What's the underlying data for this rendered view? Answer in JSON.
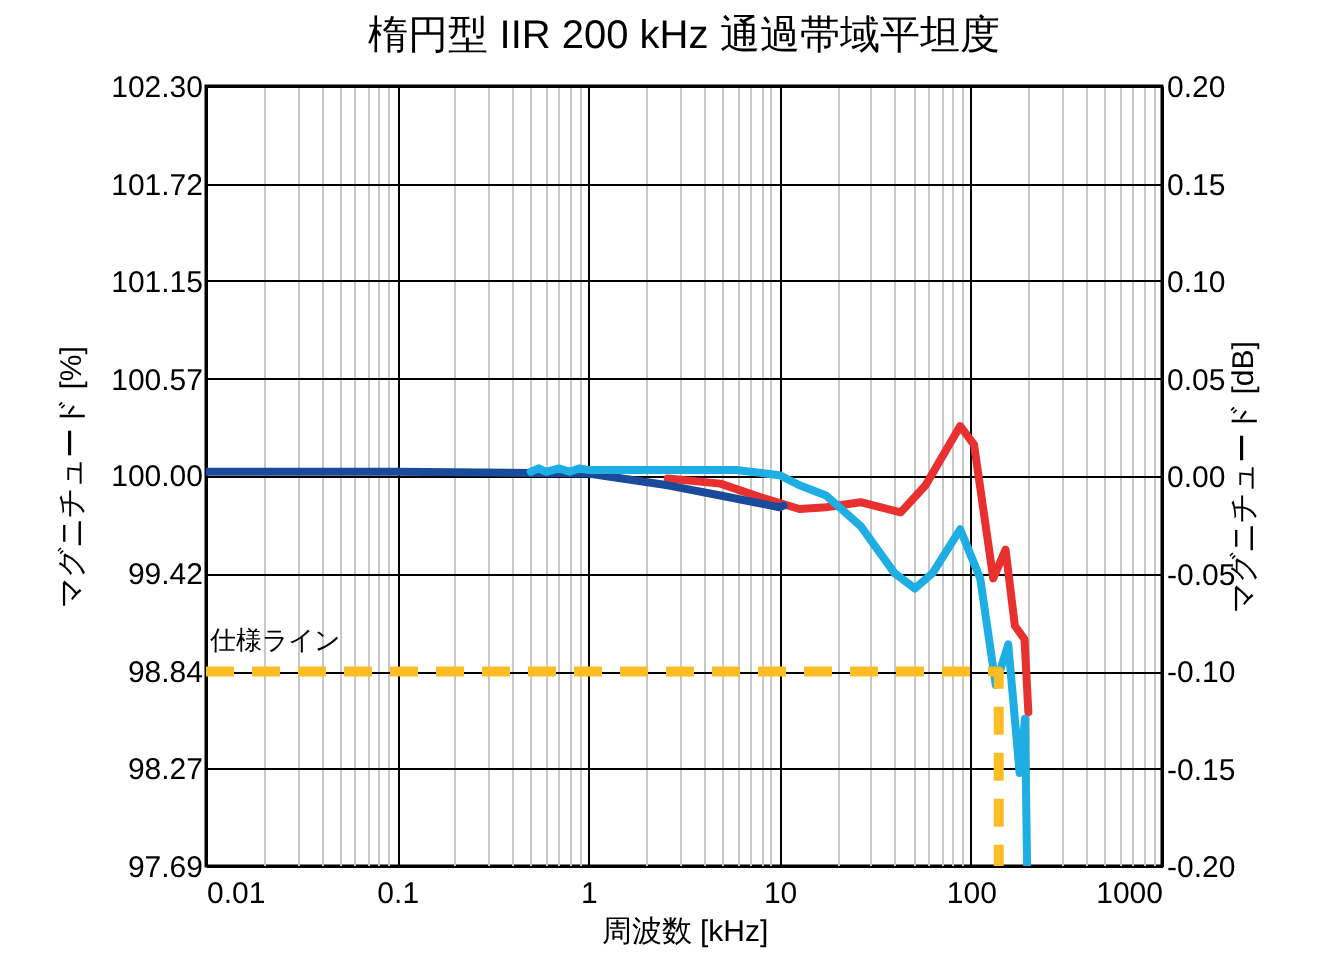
{
  "chart_data": {
    "type": "line",
    "title": "楕円型 IIR 200 kHz 通過帯域平坦度",
    "xlabel": "周波数 [kHz]",
    "ylabel": "マグニチュード [%]",
    "y2label": "マグニチュード [dB]",
    "log": "x",
    "grid": true,
    "xlim": [
      0.01,
      1000
    ],
    "xticks": [
      0.01,
      {
        "value": 0.02,
        "label": null
      },
      {
        "value": 0.03,
        "label": null
      },
      {
        "value": 0.04,
        "label": null
      },
      {
        "value": 0.05,
        "label": null
      },
      {
        "value": 0.06,
        "label": null
      },
      {
        "value": 0.07,
        "label": null
      },
      {
        "value": 0.08,
        "label": null
      },
      {
        "value": 0.09,
        "label": null
      },
      0.1,
      {
        "value": 0.2,
        "label": null
      },
      {
        "value": 0.3,
        "label": null
      },
      {
        "value": 0.4,
        "label": null
      },
      {
        "value": 0.5,
        "label": null
      },
      {
        "value": 0.6,
        "label": null
      },
      {
        "value": 0.7,
        "label": null
      },
      {
        "value": 0.8,
        "label": null
      },
      {
        "value": 0.9,
        "label": null
      },
      1,
      {
        "value": 2,
        "label": null
      },
      {
        "value": 3,
        "label": null
      },
      {
        "value": 4,
        "label": null
      },
      {
        "value": 5,
        "label": null
      },
      {
        "value": 6,
        "label": null
      },
      {
        "value": 7,
        "label": null
      },
      {
        "value": 8,
        "label": null
      },
      {
        "value": 9,
        "label": null
      },
      10,
      {
        "value": 20,
        "label": null
      },
      {
        "value": 30,
        "label": null
      },
      {
        "value": 40,
        "label": null
      },
      {
        "value": 50,
        "label": null
      },
      {
        "value": 60,
        "label": null
      },
      {
        "value": 70,
        "label": null
      },
      {
        "value": 80,
        "label": null
      },
      {
        "value": 90,
        "label": null
      },
      100,
      {
        "value": 200,
        "label": null
      },
      {
        "value": 300,
        "label": null
      },
      {
        "value": 400,
        "label": null
      },
      {
        "value": 500,
        "label": null
      },
      {
        "value": 600,
        "label": null
      },
      {
        "value": 700,
        "label": null
      },
      {
        "value": 800,
        "label": null
      },
      {
        "value": 900,
        "label": null
      },
      1000
    ],
    "ylim": [
      97.69,
      102.3
    ],
    "yticks": [
      97.69,
      98.27,
      98.84,
      99.42,
      {
        "value": 100,
        "label": "100.00"
      },
      100.57,
      101.15,
      101.72,
      {
        "value": 102.3,
        "label": "102.30"
      }
    ],
    "y2lim": [
      -0.2,
      0.2
    ],
    "y2ticks": [
      {
        "value": -0.2,
        "label": "-0.20"
      },
      -0.15,
      {
        "value": -0.1,
        "label": "-0.10"
      },
      -0.05,
      {
        "value": 0,
        "label": "0.00"
      },
      0.05,
      {
        "value": 0.1,
        "label": "0.10"
      },
      0.15,
      {
        "value": 0.2,
        "label": "0.20"
      }
    ],
    "series": [
      {
        "color": "#e8302f",
        "x": [
          2.6,
          4.9,
          7.9,
          12.7,
          17.5,
          26.5,
          43,
          58,
          88,
          104,
          131,
          152,
          170,
          191,
          200
        ],
        "values": [
          99.98,
          99.95,
          99.87,
          99.8,
          99.81,
          99.84,
          99.78,
          99.94,
          100.29,
          100.18,
          99.39,
          99.56,
          99.11,
          99.03,
          98.6
        ]
      },
      {
        "color": "#1a4b9b",
        "x": [
          0.01,
          0.1,
          1,
          2.6,
          4.9,
          10,
          10.5
        ],
        "values": [
          100.02,
          100.02,
          100.01,
          99.94,
          99.88,
          99.81,
          99.82
        ]
      },
      {
        "color": "#1eaee4",
        "x": [
          0.5,
          0.55,
          0.6,
          0.7,
          0.8,
          0.9,
          1,
          3,
          5.9,
          10,
          12.7,
          17.5,
          26.5,
          40,
          51,
          63,
          88,
          112,
          135,
          157,
          180,
          192,
          197
        ],
        "values": [
          100.02,
          100.04,
          100.02,
          100.04,
          100.02,
          100.04,
          100.03,
          100.03,
          100.03,
          100.0,
          99.94,
          99.88,
          99.7,
          99.42,
          99.33,
          99.42,
          99.68,
          99.39,
          98.76,
          99.0,
          98.24,
          98.56,
          97.69
        ]
      },
      {
        "color": "#fbbc24",
        "line_style": "dashed",
        "x": [
          0.01,
          140,
          140
        ],
        "values": [
          98.84,
          98.84,
          97.69
        ]
      }
    ],
    "annotations": [
      {
        "text": "仕様ライン",
        "x": 0.01,
        "y": 98.84
      }
    ]
  }
}
